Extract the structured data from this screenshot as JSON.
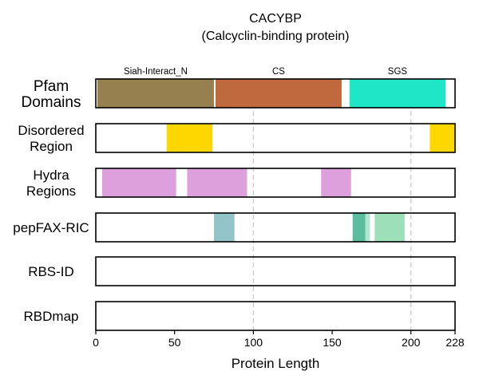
{
  "chart_data": {
    "type": "domain-track",
    "title": "CACYBP",
    "subtitle": "(Calcyclin-binding protein)",
    "xlabel": "Protein Length",
    "xlim": [
      0,
      228
    ],
    "xticks": [
      0,
      50,
      100,
      150,
      200,
      228
    ],
    "gridlines": [
      100,
      200
    ],
    "tracks": [
      {
        "name": "Pfam Domains",
        "label_lines": [
          "Pfam",
          "Domains"
        ],
        "segments": [
          {
            "label": "Siah-Interact_N",
            "start": 1,
            "end": 75,
            "color": "#968050"
          },
          {
            "label": "CS",
            "start": 76,
            "end": 156,
            "color": "#c0693e"
          },
          {
            "label": "SGS",
            "start": 161,
            "end": 222,
            "color": "#1ee6c6"
          }
        ]
      },
      {
        "name": "Disordered Region",
        "label_lines": [
          "Disordered",
          "Region"
        ],
        "segments": [
          {
            "start": 45,
            "end": 74,
            "color": "#ffd700"
          },
          {
            "start": 212,
            "end": 228,
            "color": "#ffd700"
          }
        ]
      },
      {
        "name": "Hydra Regions",
        "label_lines": [
          "Hydra",
          "Regions"
        ],
        "segments": [
          {
            "start": 4,
            "end": 51,
            "color": "#dda0dd"
          },
          {
            "start": 58,
            "end": 96,
            "color": "#dda0dd"
          },
          {
            "start": 143,
            "end": 162,
            "color": "#dda0dd"
          }
        ]
      },
      {
        "name": "pepFAX-RIC",
        "label_lines": [
          "pepFAX-RIC"
        ],
        "segments": [
          {
            "start": 75,
            "end": 88,
            "color": "#93c4c8"
          },
          {
            "start": 163,
            "end": 171,
            "color": "#5bbd9d"
          },
          {
            "start": 171,
            "end": 174,
            "color": "#b0e6d0"
          },
          {
            "start": 177,
            "end": 196,
            "color": "#9ddfb8"
          }
        ]
      },
      {
        "name": "RBS-ID",
        "label_lines": [
          "RBS-ID"
        ],
        "segments": []
      },
      {
        "name": "RBDmap",
        "label_lines": [
          "RBDmap"
        ],
        "segments": []
      }
    ]
  }
}
